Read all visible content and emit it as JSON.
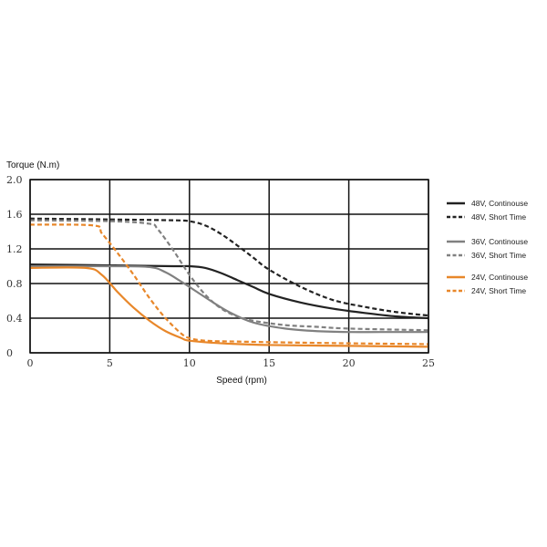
{
  "chart_data": {
    "type": "line",
    "ylabel": "Torque (N.m)",
    "xlabel": "Speed (rpm)",
    "xlim": [
      0,
      25
    ],
    "ylim": [
      0,
      2.0
    ],
    "x_ticks": [
      "0",
      "5",
      "10",
      "15",
      "20",
      "25"
    ],
    "y_ticks": [
      "0",
      "0.4",
      "0.8",
      "1.2",
      "1.6",
      "2.0"
    ],
    "grid": true,
    "legend_position": "right",
    "series": [
      {
        "name": "48V, Continouse",
        "color": "#222222",
        "dash": "solid",
        "x": [
          0,
          5,
          9,
          10,
          11,
          12,
          13,
          14,
          15,
          17,
          19,
          21,
          23,
          25
        ],
        "y": [
          1.02,
          1.01,
          1.0,
          1.0,
          0.98,
          0.92,
          0.84,
          0.76,
          0.68,
          0.58,
          0.51,
          0.46,
          0.42,
          0.4
        ]
      },
      {
        "name": "48V, Short  Time",
        "color": "#222222",
        "dash": "dashed",
        "x": [
          0,
          5,
          9,
          10,
          11,
          12,
          13,
          14,
          15,
          17,
          19,
          21,
          23,
          25
        ],
        "y": [
          1.55,
          1.54,
          1.53,
          1.52,
          1.47,
          1.37,
          1.24,
          1.1,
          0.96,
          0.76,
          0.61,
          0.53,
          0.47,
          0.43
        ]
      },
      {
        "name": "36V, Continouse",
        "color": "#808080",
        "dash": "solid",
        "x": [
          0,
          5,
          7.5,
          8.5,
          9.5,
          10.5,
          11.5,
          12.5,
          14,
          16,
          18,
          20,
          22,
          25
        ],
        "y": [
          1.0,
          1.0,
          0.99,
          0.93,
          0.82,
          0.7,
          0.58,
          0.47,
          0.35,
          0.28,
          0.25,
          0.24,
          0.24,
          0.24
        ]
      },
      {
        "name": "36V, Short  Time",
        "color": "#808080",
        "dash": "dashed",
        "x": [
          0,
          5,
          7.5,
          8,
          9,
          10,
          11,
          12,
          13,
          14,
          16,
          18,
          20,
          25
        ],
        "y": [
          1.53,
          1.52,
          1.49,
          1.43,
          1.18,
          0.9,
          0.67,
          0.51,
          0.42,
          0.37,
          0.32,
          0.3,
          0.28,
          0.26
        ]
      },
      {
        "name": "24V, Continouse",
        "color": "#E8872A",
        "dash": "solid",
        "x": [
          0,
          3.5,
          4.5,
          5.5,
          6.5,
          7.5,
          8.5,
          9.5,
          10,
          12,
          15,
          20,
          25
        ],
        "y": [
          0.98,
          0.98,
          0.9,
          0.7,
          0.52,
          0.37,
          0.25,
          0.17,
          0.14,
          0.11,
          0.09,
          0.08,
          0.07
        ]
      },
      {
        "name": "24V, Short  Time",
        "color": "#E8872A",
        "dash": "dashed",
        "x": [
          0,
          4,
          4.5,
          5.5,
          6.5,
          7.5,
          8.5,
          9.5,
          10,
          11,
          13,
          16,
          20,
          25
        ],
        "y": [
          1.48,
          1.47,
          1.38,
          1.15,
          0.9,
          0.63,
          0.4,
          0.22,
          0.17,
          0.14,
          0.13,
          0.12,
          0.11,
          0.1
        ]
      }
    ]
  }
}
